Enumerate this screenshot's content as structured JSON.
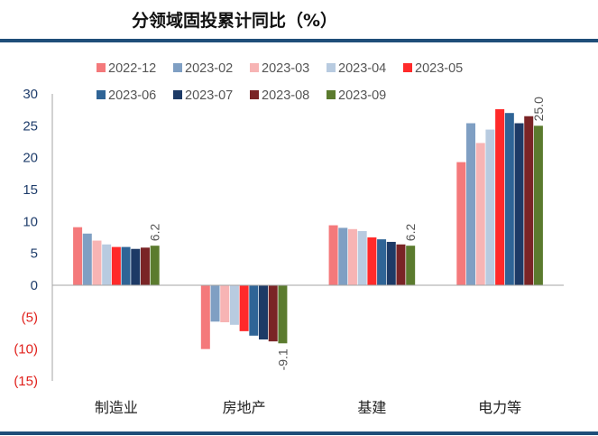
{
  "chart_data": {
    "type": "bar",
    "title": "分领域固投累计同比（%）",
    "categories": [
      "制造业",
      "房地产",
      "基建",
      "电力等"
    ],
    "series": [
      {
        "name": "2022-12",
        "color": "#f4797b",
        "values": [
          9.1,
          -10.0,
          9.4,
          19.3
        ]
      },
      {
        "name": "2023-02",
        "color": "#7f9fc3",
        "values": [
          8.1,
          -5.7,
          9.0,
          25.4
        ]
      },
      {
        "name": "2023-03",
        "color": "#f7b4b4",
        "values": [
          7.0,
          -5.8,
          8.8,
          22.3
        ]
      },
      {
        "name": "2023-04",
        "color": "#b8cbe0",
        "values": [
          6.4,
          -6.2,
          8.5,
          24.4
        ]
      },
      {
        "name": "2023-05",
        "color": "#ff2a2a",
        "values": [
          6.0,
          -7.2,
          7.5,
          27.6
        ]
      },
      {
        "name": "2023-06",
        "color": "#2f6496",
        "values": [
          6.0,
          -7.9,
          7.2,
          27.0
        ]
      },
      {
        "name": "2023-07",
        "color": "#1d3a66",
        "values": [
          5.7,
          -8.5,
          6.8,
          25.4
        ]
      },
      {
        "name": "2023-08",
        "color": "#7a2426",
        "values": [
          5.9,
          -8.8,
          6.4,
          26.5
        ]
      },
      {
        "name": "2023-09",
        "color": "#5b7b2e",
        "values": [
          6.2,
          -9.1,
          6.2,
          25.0
        ]
      }
    ],
    "data_labels": [
      {
        "category_index": 0,
        "series_index": 8,
        "text": "6.2"
      },
      {
        "category_index": 1,
        "series_index": 8,
        "text": "-9.1"
      },
      {
        "category_index": 2,
        "series_index": 8,
        "text": "6.2"
      },
      {
        "category_index": 3,
        "series_index": 8,
        "text": "25.0"
      }
    ],
    "ylim": [
      -15,
      30
    ],
    "yticks": [
      30,
      25,
      20,
      15,
      10,
      5,
      0,
      -5,
      -10,
      -15
    ],
    "ytick_labels": [
      "30",
      "25",
      "20",
      "15",
      "10",
      "5",
      "0",
      "(5)",
      "(10)",
      "(15)"
    ],
    "positive_tick_color": "#1f3d6b",
    "negative_tick_color": "#e0201b",
    "rule_color": "#1f4e79",
    "xlabel": "",
    "ylabel": "",
    "legend_position": "top"
  }
}
